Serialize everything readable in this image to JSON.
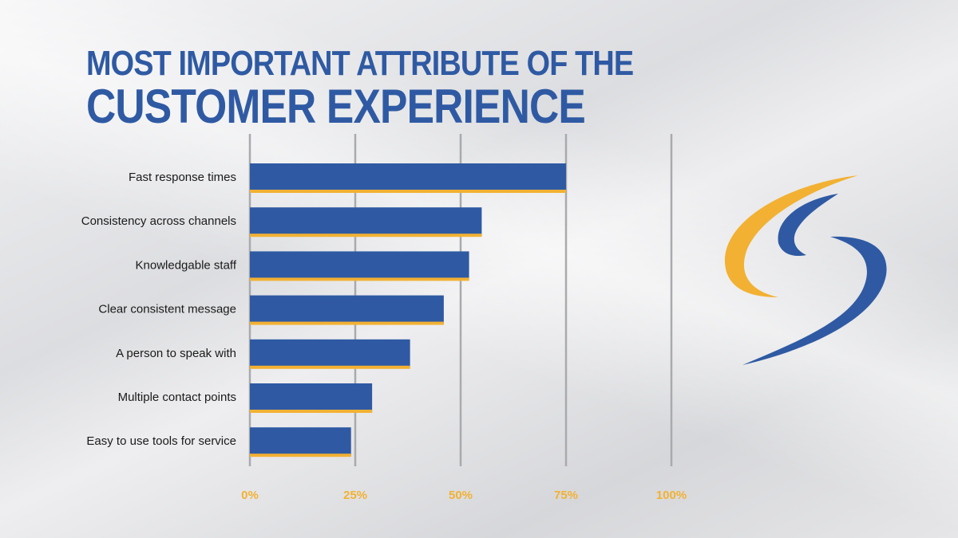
{
  "title": {
    "line1": "MOST IMPORTANT ATTRIBUTE OF THE",
    "line2": "CUSTOMER EXPERIENCE"
  },
  "colors": {
    "title": "#2f5aa3",
    "bar": "#2f5aa3",
    "bar_accent": "#f2b133",
    "tick_label": "#f2b133",
    "gridline": "#a9aaad",
    "category_label": "#1a1a1a"
  },
  "logo": {
    "name": "swoosh-logo",
    "colors": [
      "#f2b133",
      "#2f5aa3"
    ]
  },
  "chart_data": {
    "type": "bar",
    "orientation": "horizontal",
    "title": "MOST IMPORTANT ATTRIBUTE OF THE CUSTOMER EXPERIENCE",
    "categories": [
      "Fast response times",
      "Consistency across channels",
      "Knowledgable staff",
      "Clear consistent message",
      "A person to speak with",
      "Multiple contact points",
      "Easy to use tools for service"
    ],
    "values": [
      75,
      55,
      52,
      46,
      38,
      29,
      24
    ],
    "xlim": [
      0,
      100
    ],
    "x_ticks": [
      0,
      25,
      50,
      75,
      100
    ],
    "x_tick_labels": [
      "0%",
      "25%",
      "50%",
      "75%",
      "100%"
    ],
    "xlabel": "",
    "ylabel": "",
    "grid": true
  }
}
